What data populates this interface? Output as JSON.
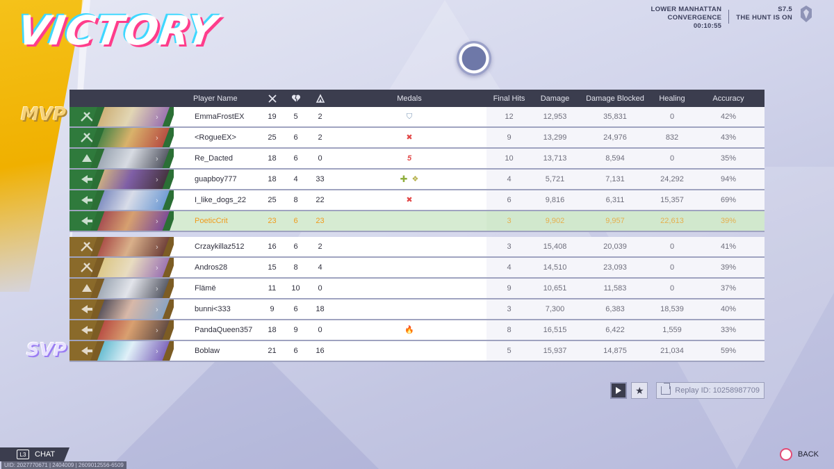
{
  "title": "VICTORY",
  "map": {
    "line1": "LOWER MANHATTAN",
    "line2": "CONVERGENCE",
    "time": "00:10:55"
  },
  "season": {
    "code": "S7.5",
    "name": "THE HUNT IS ON"
  },
  "headers": {
    "player_name": "Player Name",
    "kills_icon": "swords-icon",
    "deaths_icon": "broken-heart-icon",
    "assists_icon": "assist-icon",
    "medals": "Medals",
    "final_hits": "Final Hits",
    "damage": "Damage",
    "damage_blocked": "Damage Blocked",
    "healing": "Healing",
    "accuracy": "Accuracy"
  },
  "badges": {
    "mvp": "MVP",
    "svp": "SVP"
  },
  "colors": {
    "ally": "#2f7a3c",
    "enemy": "#8a6a2a",
    "self_highlight": "#f19a1a",
    "header": "#3b3d4e"
  },
  "team_allies": [
    {
      "role": "duelist",
      "name": "EmmaFrostEX",
      "k": "19",
      "d": "5",
      "a": "2",
      "medals": [
        "shield"
      ],
      "fh": "12",
      "dmg": "12,953",
      "blk": "35,831",
      "heal": "0",
      "acc": "42%",
      "art": [
        "#c9a86a",
        "#e2d6b4",
        "#8d5fb0"
      ]
    },
    {
      "role": "duelist",
      "name": "<RogueEX>",
      "k": "25",
      "d": "6",
      "a": "2",
      "medals": [
        "x"
      ],
      "fh": "9",
      "dmg": "13,299",
      "blk": "24,976",
      "heal": "832",
      "acc": "43%",
      "art": [
        "#2d7a3e",
        "#d9b26b",
        "#b03a3a"
      ]
    },
    {
      "role": "vanguard",
      "name": "Re_Dacted",
      "k": "18",
      "d": "6",
      "a": "0",
      "medals": [
        "five"
      ],
      "fh": "10",
      "dmg": "13,713",
      "blk": "8,594",
      "heal": "0",
      "acc": "35%",
      "art": [
        "#8e9aa8",
        "#d7dbe2",
        "#3c3f4c"
      ]
    },
    {
      "role": "strategist",
      "name": "guapboy777",
      "k": "18",
      "d": "4",
      "a": "33",
      "medals": [
        "plus",
        "leaf"
      ],
      "fh": "4",
      "dmg": "5,721",
      "blk": "7,131",
      "heal": "24,292",
      "acc": "94%",
      "art": [
        "#e0c27a",
        "#7f5fa6",
        "#3a2a2a"
      ]
    },
    {
      "role": "strategist",
      "name": "I_like_dogs_22",
      "k": "25",
      "d": "8",
      "a": "22",
      "medals": [
        "x"
      ],
      "fh": "6",
      "dmg": "9,816",
      "blk": "6,311",
      "heal": "15,357",
      "acc": "69%",
      "art": [
        "#6a7bb8",
        "#d8dce8",
        "#5c8fd0"
      ]
    },
    {
      "role": "strategist",
      "name": "PoeticCrit",
      "k": "23",
      "d": "6",
      "a": "23",
      "medals": [],
      "fh": "3",
      "dmg": "9,902",
      "blk": "9,957",
      "heal": "22,613",
      "acc": "39%",
      "self": true,
      "art": [
        "#9a3a4a",
        "#d6a070",
        "#6a3aa0"
      ]
    }
  ],
  "team_enemies": [
    {
      "role": "duelist",
      "name": "Crzaykillaz512",
      "k": "16",
      "d": "6",
      "a": "2",
      "medals": [],
      "fh": "3",
      "dmg": "15,408",
      "blk": "20,039",
      "heal": "0",
      "acc": "41%",
      "art": [
        "#a03a3a",
        "#d9b08a",
        "#5a2a2a"
      ]
    },
    {
      "role": "duelist",
      "name": "Andros28",
      "k": "15",
      "d": "8",
      "a": "4",
      "medals": [],
      "fh": "4",
      "dmg": "14,510",
      "blk": "23,093",
      "heal": "0",
      "acc": "39%",
      "art": [
        "#d9c27a",
        "#e8dcc0",
        "#8d5fb0"
      ]
    },
    {
      "role": "vanguard",
      "name": "Flämë",
      "k": "11",
      "d": "10",
      "a": "0",
      "medals": [],
      "fh": "9",
      "dmg": "10,651",
      "blk": "11,583",
      "heal": "0",
      "acc": "37%",
      "art": [
        "#8e9aa8",
        "#e2e4ea",
        "#3c3f4c"
      ]
    },
    {
      "role": "strategist",
      "name": "bunni<333",
      "k": "9",
      "d": "6",
      "a": "18",
      "medals": [],
      "fh": "3",
      "dmg": "7,300",
      "blk": "6,383",
      "heal": "18,539",
      "acc": "40%",
      "art": [
        "#3a3a4a",
        "#d8b8a8",
        "#7aa0c8"
      ]
    },
    {
      "role": "strategist",
      "name": "PandaQueen357",
      "k": "18",
      "d": "9",
      "a": "0",
      "medals": [
        "fire"
      ],
      "fh": "8",
      "dmg": "16,515",
      "blk": "6,422",
      "heal": "1,559",
      "acc": "33%",
      "art": [
        "#b03a3a",
        "#d9a070",
        "#4a3a3a"
      ]
    },
    {
      "role": "strategist",
      "name": "Boblaw",
      "k": "21",
      "d": "6",
      "a": "16",
      "medals": [],
      "fh": "5",
      "dmg": "15,937",
      "blk": "14,875",
      "heal": "21,034",
      "acc": "59%",
      "art": [
        "#4ab0c8",
        "#e0f0f8",
        "#6a4ab0"
      ]
    }
  ],
  "replay": {
    "label": "Replay ID: 10258987709"
  },
  "chat": {
    "key": "L3",
    "label": "CHAT"
  },
  "uid": "UID: 2027770671 | 2404009 | 2609012556-6509",
  "back": {
    "label": "BACK"
  }
}
